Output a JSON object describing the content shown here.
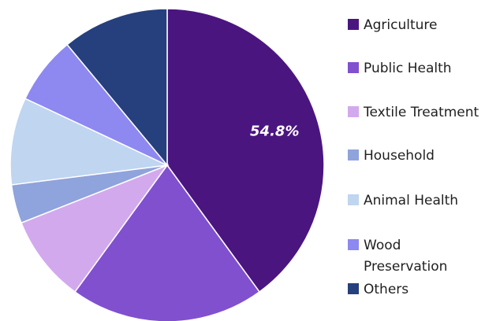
{
  "chart_data": {
    "type": "pie",
    "title": "",
    "data_label_text": "54.8%",
    "slices": [
      {
        "label": "Agriculture",
        "value": 40.0,
        "color": "#4B1580"
      },
      {
        "label": "Public Health",
        "value": 20.0,
        "color": "#8150CF"
      },
      {
        "label": "Textile Treatment",
        "value": 9.0,
        "color": "#D3A9EE"
      },
      {
        "label": "Household",
        "value": 4.0,
        "color": "#8FA3DC"
      },
      {
        "label": "Animal Health",
        "value": 9.0,
        "color": "#BFD5F0"
      },
      {
        "label": "Wood Preservation",
        "value": 7.0,
        "color": "#8E88F1"
      },
      {
        "label": "Others",
        "value": 11.0,
        "color": "#263F7D"
      }
    ],
    "legend": {
      "placement": "right",
      "entries": [
        [
          "Agriculture"
        ],
        [
          "Public Health"
        ],
        [
          "Textile Treatment"
        ],
        [
          "Household"
        ],
        [
          "Animal Health"
        ],
        [
          "Wood",
          "Preservation"
        ],
        [
          "Others"
        ]
      ]
    }
  }
}
